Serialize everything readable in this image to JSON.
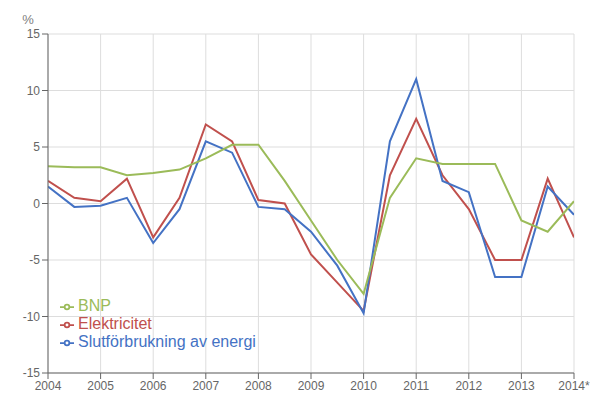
{
  "chart_data": {
    "type": "line",
    "y_label": "%",
    "x": [
      2004,
      2004.5,
      2005,
      2005.5,
      2006,
      2006.5,
      2007,
      2007.5,
      2008,
      2008.5,
      2009,
      2009.5,
      2010,
      2010.5,
      2011,
      2011.5,
      2012,
      2012.5,
      2013,
      2013.5,
      2014
    ],
    "series": [
      {
        "name": "Elektricitet",
        "color": "#c0504d",
        "values": [
          2.0,
          0.5,
          0.2,
          2.2,
          -3.0,
          0.5,
          7.0,
          5.5,
          0.3,
          0.0,
          -4.5,
          -7.0,
          -9.5,
          2.5,
          7.5,
          2.5,
          -0.5,
          -5.0,
          -5.0,
          2.2,
          -3.0
        ]
      },
      {
        "name": "Slutförbrukning av energi",
        "color": "#4472c4",
        "values": [
          1.5,
          -0.3,
          -0.2,
          0.5,
          -3.5,
          -0.5,
          5.5,
          4.5,
          -0.3,
          -0.5,
          -2.5,
          -5.5,
          -9.7,
          5.5,
          11.0,
          2.0,
          1.0,
          -6.5,
          -6.5,
          1.5,
          -1.0
        ]
      },
      {
        "name": "BNP",
        "color": "#9bbb59",
        "values": [
          3.3,
          3.2,
          3.2,
          2.5,
          2.7,
          3.0,
          4.0,
          5.2,
          5.2,
          2.0,
          -1.5,
          -5.0,
          -8.0,
          0.5,
          4.0,
          3.5,
          3.5,
          3.5,
          -1.5,
          -2.5,
          0.2
        ]
      }
    ],
    "xlim": [
      2004,
      2014
    ],
    "xticks": [
      2004,
      2005,
      2006,
      2007,
      2008,
      2009,
      2010,
      2011,
      2012,
      2013,
      {
        "value": 2014,
        "label": "2014*"
      }
    ],
    "ylim": [
      -15,
      15
    ],
    "yticks": [
      -15,
      -10,
      -5,
      0,
      5,
      10,
      15
    ],
    "grid": true,
    "legend": "lower left"
  }
}
